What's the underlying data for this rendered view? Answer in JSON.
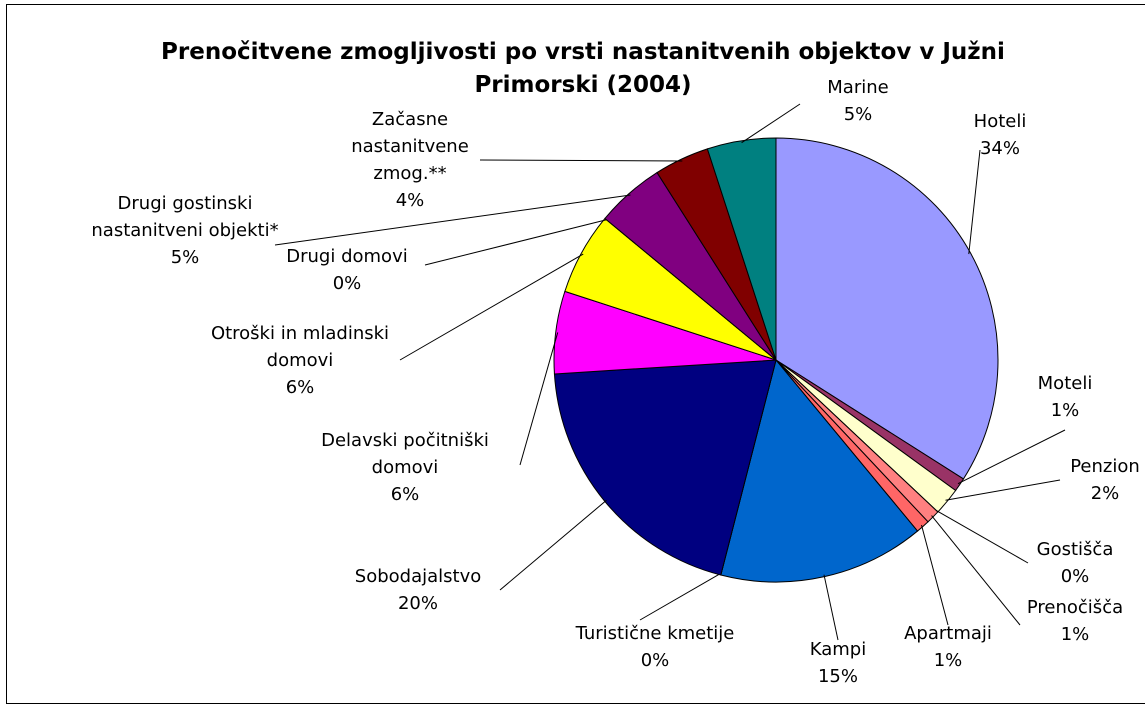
{
  "chart_data": {
    "type": "pie",
    "title": "Prenočitvene zmogljivosti po vrsti nastanitvenih objektov v Južni Primorski (2004)",
    "categories": [
      "Hoteli",
      "Moteli",
      "Penzion",
      "Gostišča",
      "Prenočišča",
      "Apartmaji",
      "Kampi",
      "Turistične kmetije",
      "Sobodajalstvo",
      "Delavski počitniški domovi",
      "Otroški in mladinski domovi",
      "Drugi domovi",
      "Drugi gostinski nastanitveni objekti*",
      "Začasne nastanitvene zmog.**",
      "Marine"
    ],
    "values": [
      34,
      1,
      2,
      0,
      1,
      1,
      15,
      0,
      20,
      6,
      6,
      0,
      5,
      4,
      5
    ],
    "value_labels": [
      "34%",
      "1%",
      "2%",
      "0%",
      "1%",
      "1%",
      "15%",
      "0%",
      "20%",
      "6%",
      "6%",
      "0%",
      "5%",
      "4%",
      "5%"
    ],
    "colors": [
      "#9999ff",
      "#993366",
      "#ffffcc",
      "#ccffff",
      "#ff8080",
      "#ff6666",
      "#0066cc",
      "#ccccff",
      "#000080",
      "#ff00ff",
      "#ffff00",
      "#00ffff",
      "#800080",
      "#800000",
      "#008080"
    ]
  }
}
